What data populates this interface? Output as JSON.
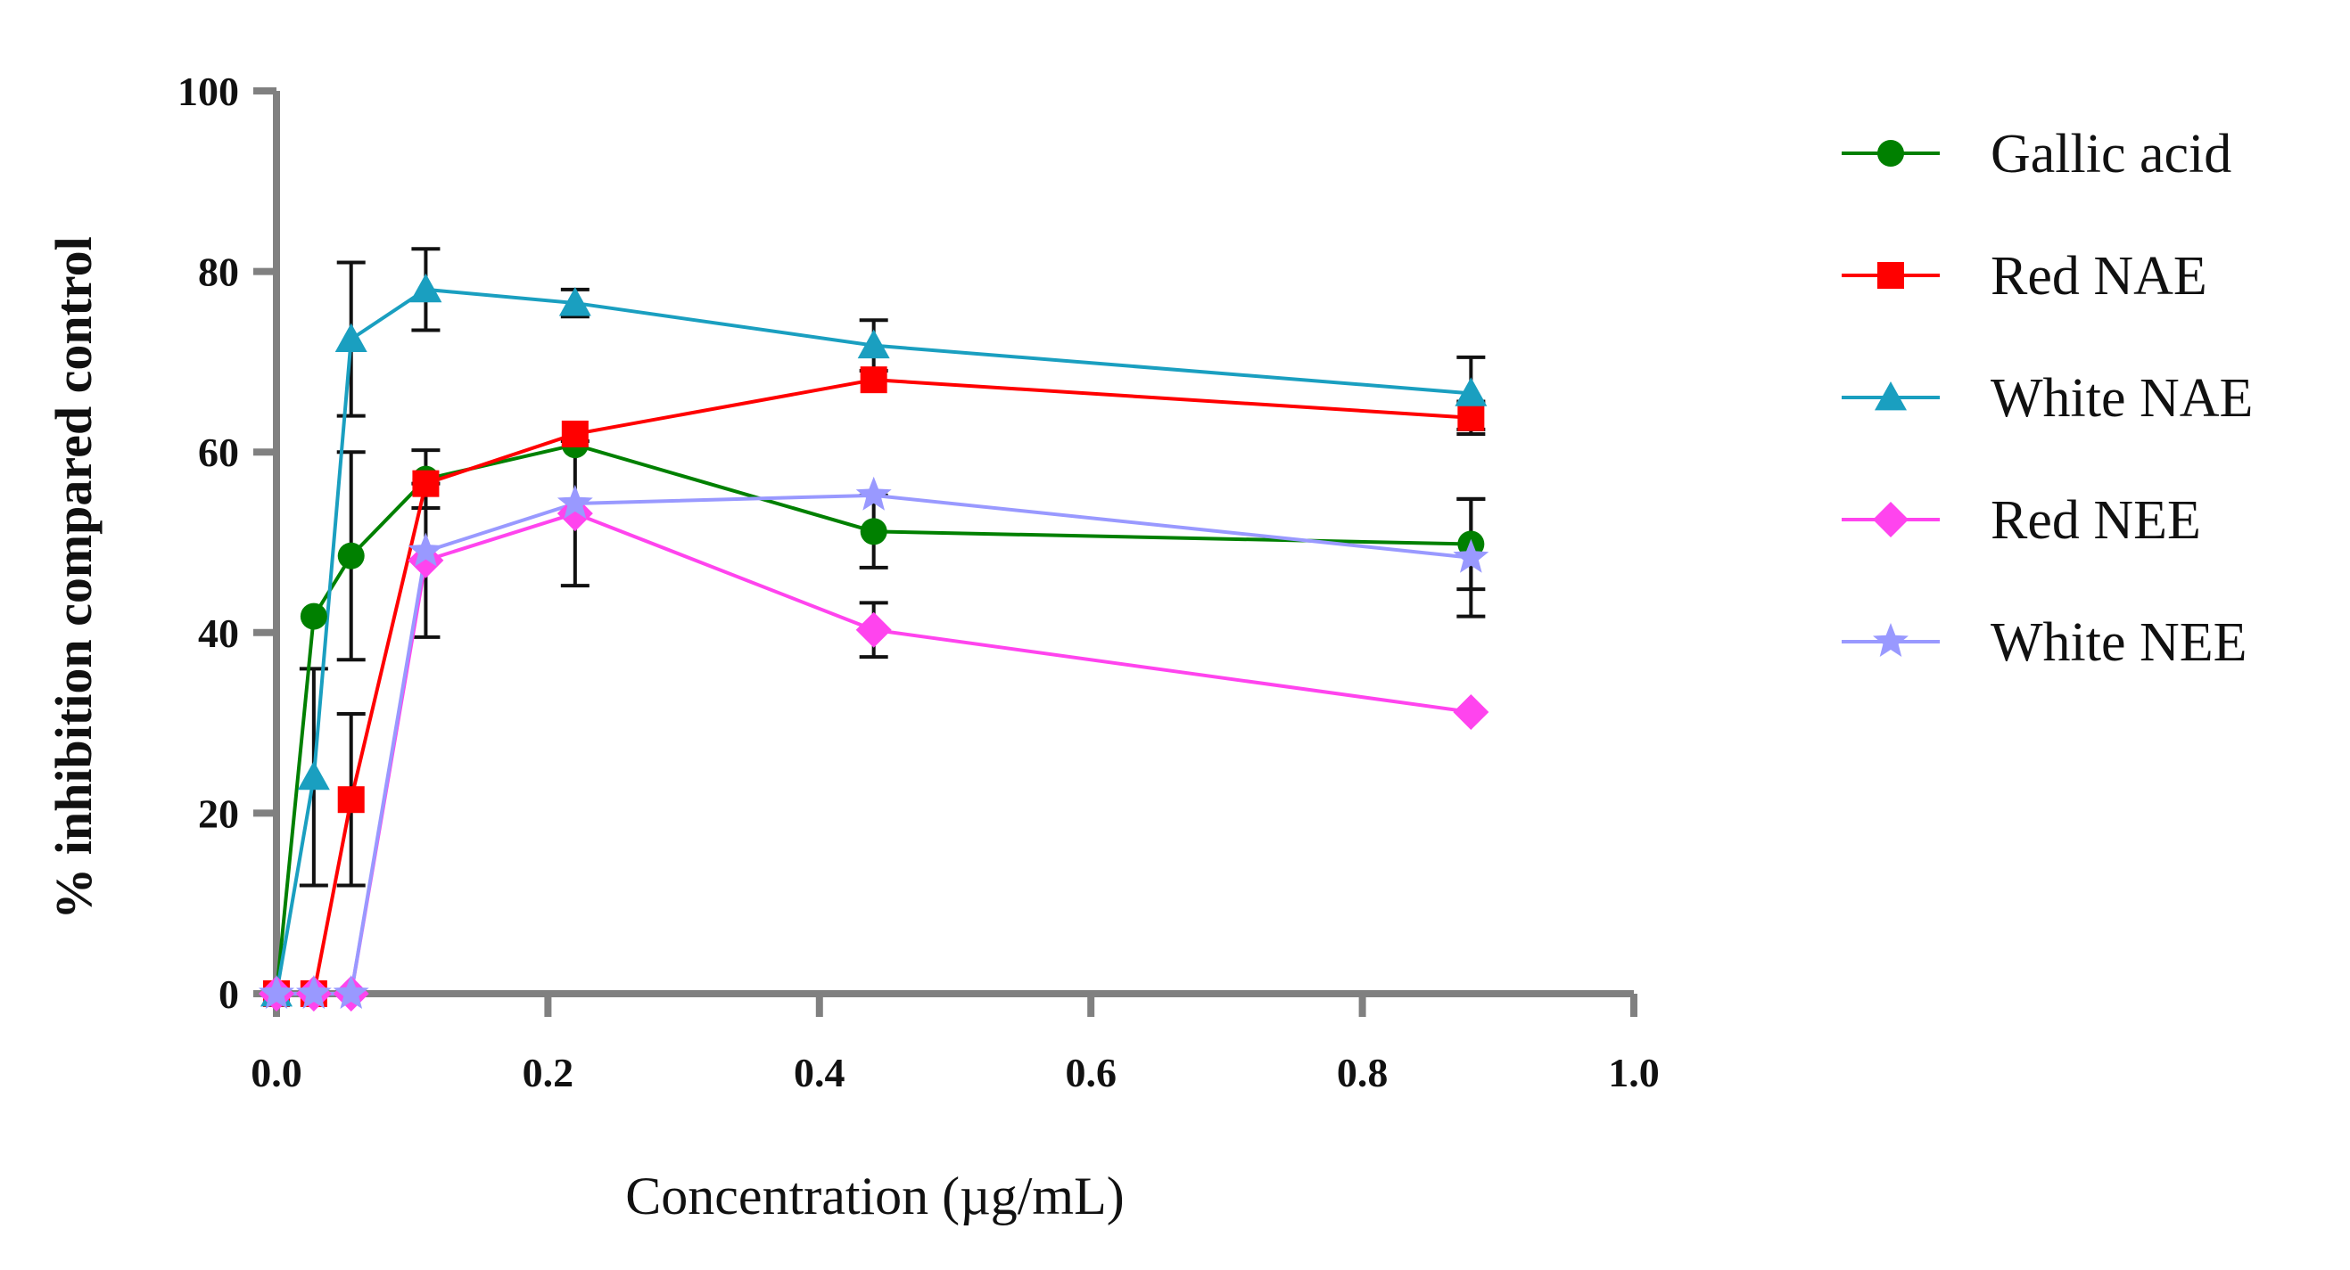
{
  "chart_data": {
    "type": "line",
    "title": "",
    "xlabel": "Concentration (µg/mL)",
    "ylabel": "% inhibition compared control",
    "xlim": [
      0,
      1.0
    ],
    "ylim": [
      0,
      100
    ],
    "xticks": [
      "0.0",
      "0.2",
      "0.4",
      "0.6",
      "0.8",
      "1.0"
    ],
    "yticks": [
      "0",
      "20",
      "40",
      "60",
      "80",
      "100"
    ],
    "x": [
      0,
      0.0275,
      0.055,
      0.11,
      0.22,
      0.44,
      0.88
    ],
    "grid": false,
    "legend_position": "right",
    "series": [
      {
        "name": "Gallic acid",
        "color": "#008000",
        "marker": "circle",
        "values": [
          0,
          41.8,
          48.5,
          57,
          60.8,
          51.2,
          49.8
        ],
        "errors": [
          0,
          0,
          11.5,
          3.2,
          0,
          4,
          5
        ]
      },
      {
        "name": "Red NAE",
        "color": "#ff0000",
        "marker": "square",
        "values": [
          0,
          0,
          21.5,
          56.5,
          62,
          68,
          63.8
        ],
        "errors": [
          0,
          0,
          9.5,
          0,
          0,
          0,
          1.8
        ]
      },
      {
        "name": "White NAE",
        "color": "#1a9fc0",
        "marker": "triangle",
        "values": [
          0,
          24,
          72.5,
          78,
          76.5,
          71.8,
          66.5
        ],
        "errors": [
          0,
          12,
          8.5,
          4.5,
          1.5,
          2.8,
          4
        ]
      },
      {
        "name": "Red NEE",
        "color": "#ff44ee",
        "marker": "diamond",
        "values": [
          0,
          0,
          0,
          48,
          53.2,
          40.3,
          31.2
        ],
        "errors": [
          0,
          0,
          0,
          8.5,
          8,
          3,
          0
        ]
      },
      {
        "name": "White NEE",
        "color": "#9999ff",
        "marker": "star",
        "values": [
          0,
          0,
          0,
          49,
          54.3,
          55.2,
          48.3
        ],
        "errors": [
          0,
          0,
          0,
          0,
          0,
          0,
          6.5
        ]
      }
    ]
  }
}
